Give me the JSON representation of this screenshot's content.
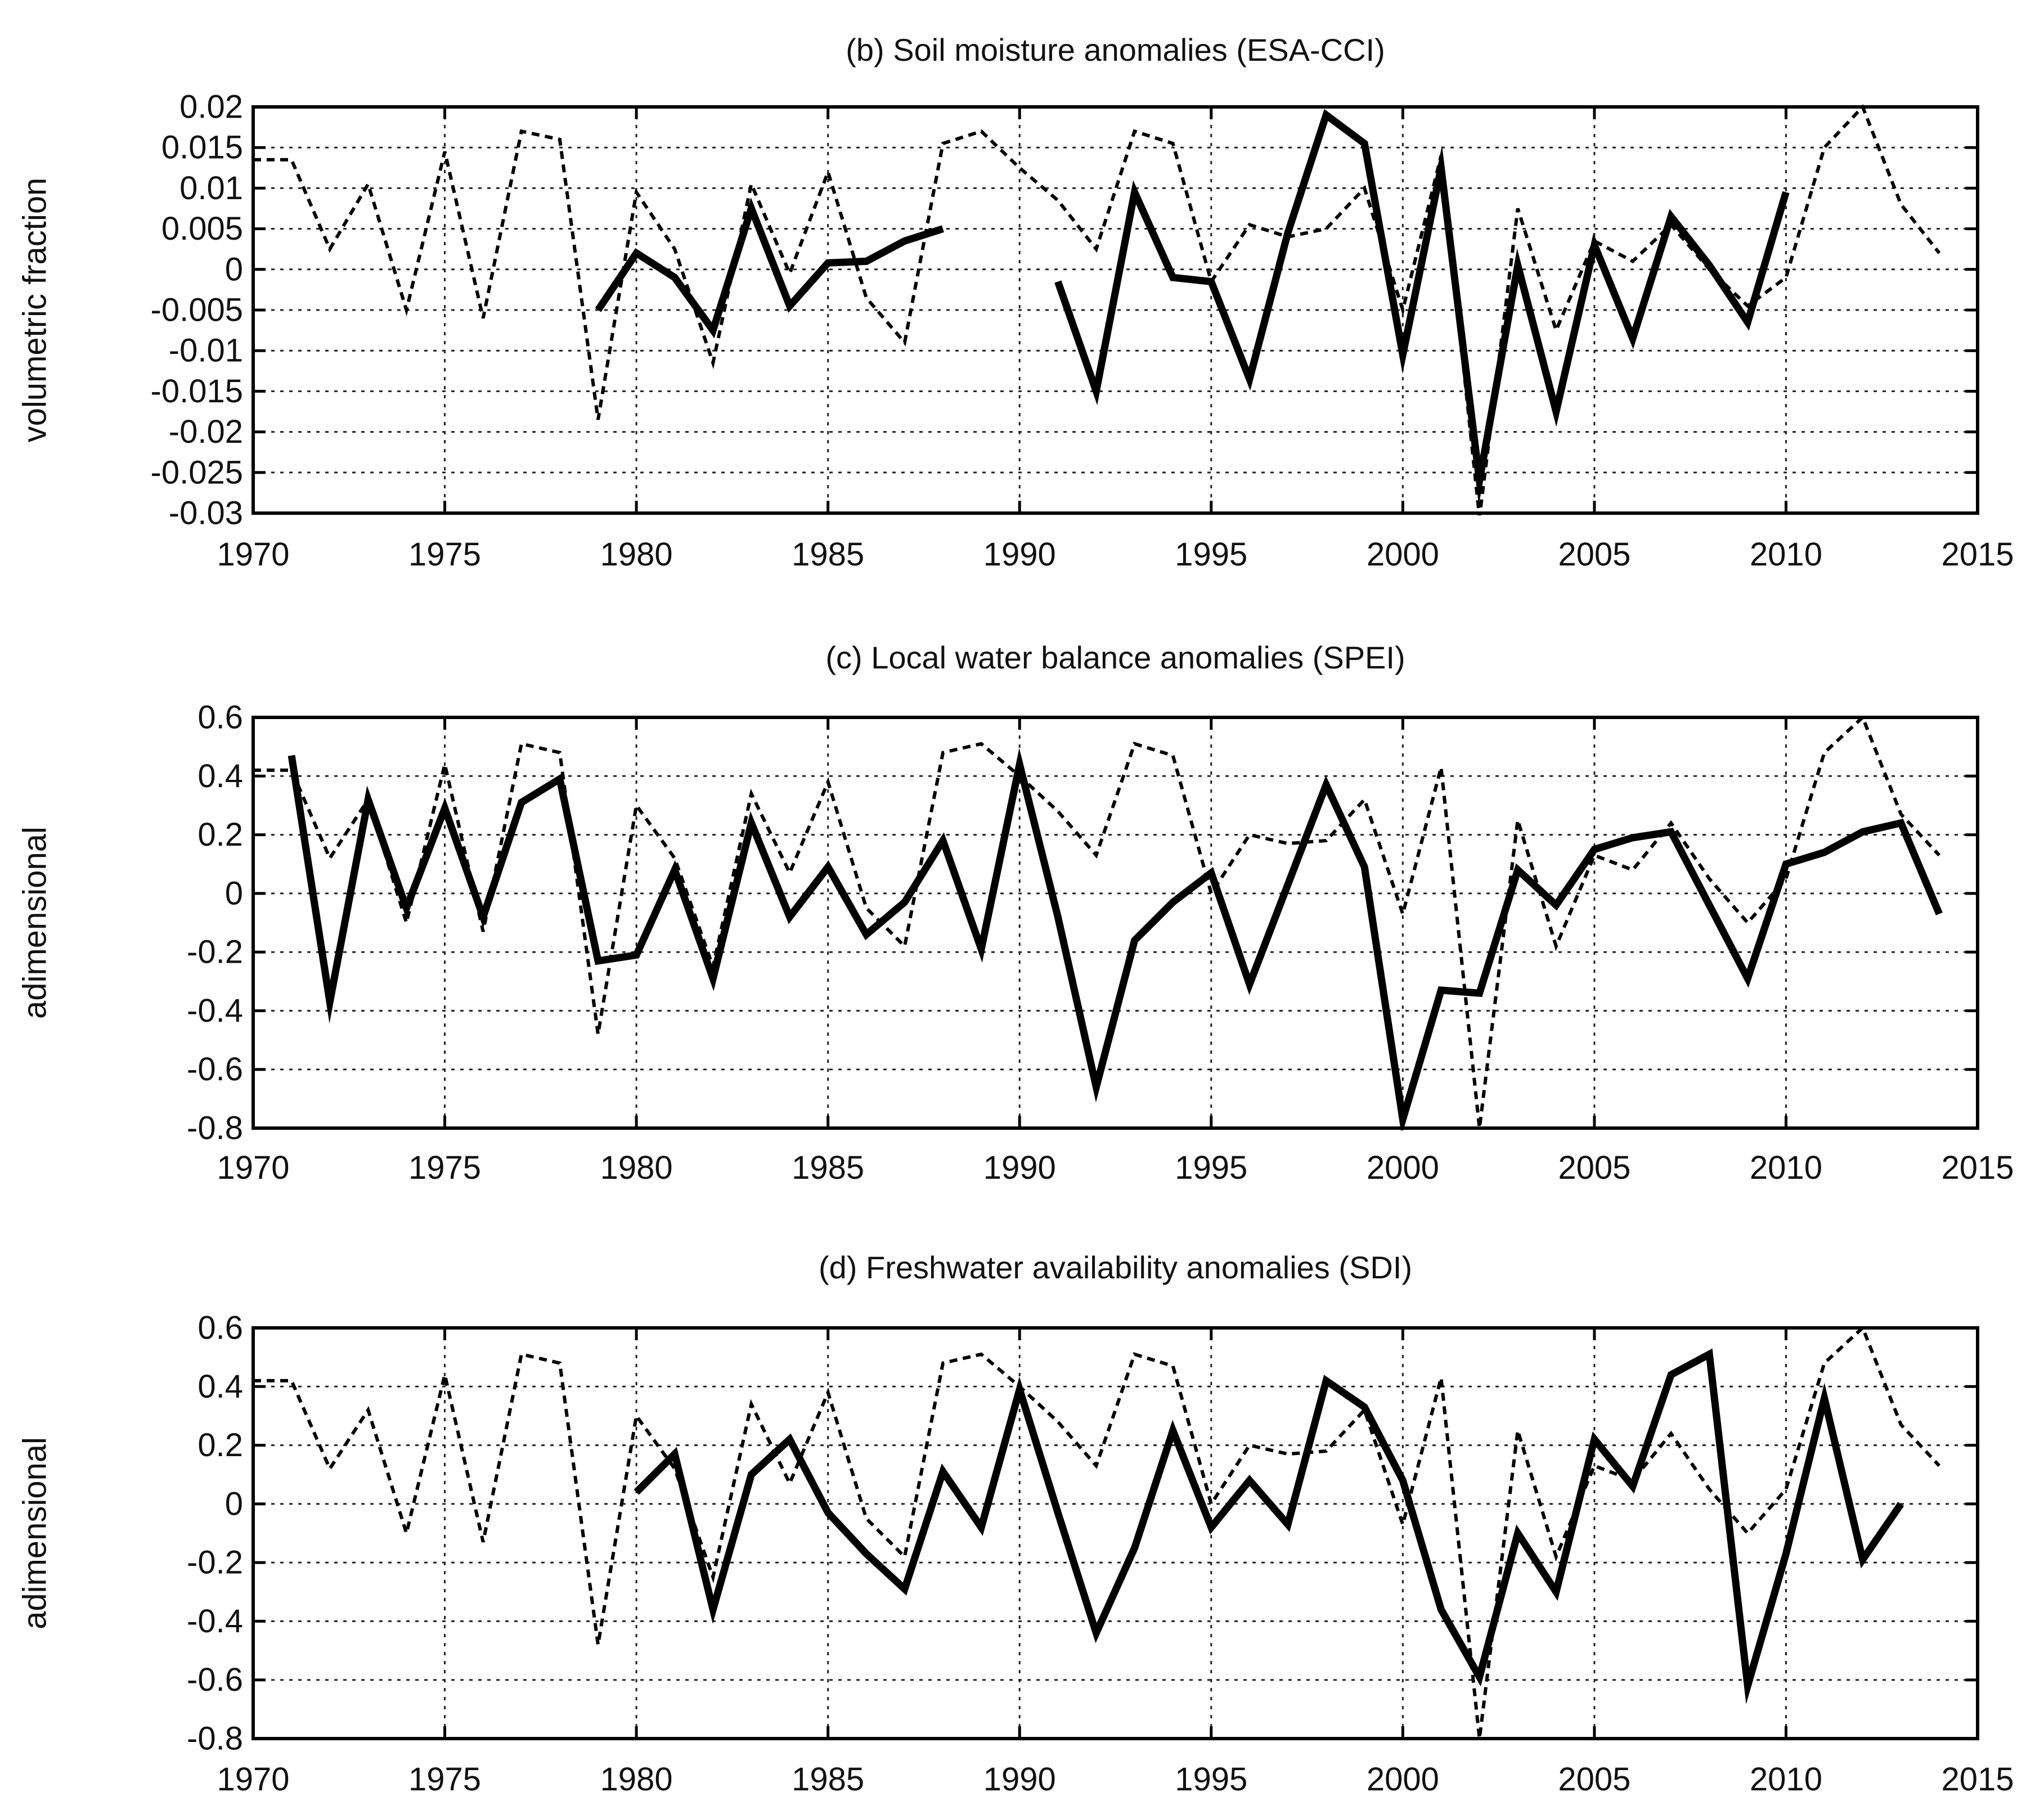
{
  "chart_data": [
    {
      "type": "line",
      "panel": "b",
      "title": "(b) Soil moisture anomalies (ESA-CCI)",
      "xlabel": "",
      "ylabel": "volumetric fraction",
      "xlim": [
        1970,
        2015
      ],
      "ylim": [
        -0.03,
        0.02
      ],
      "xticks": [
        1970,
        1975,
        1980,
        1985,
        1990,
        1995,
        2000,
        2005,
        2010,
        2015
      ],
      "xtick_labels": [
        "1970",
        "1975",
        "1980",
        "1985",
        "1990",
        "1995",
        "2000",
        "2005",
        "2010",
        "2015"
      ],
      "yticks": [
        -0.03,
        -0.025,
        -0.02,
        -0.015,
        -0.01,
        -0.005,
        0,
        0.005,
        0.01,
        0.015,
        0.02
      ],
      "ytick_labels": [
        "-0.03",
        "-0.025",
        "-0.02",
        "-0.015",
        "-0.01",
        "-0.005",
        "0",
        "0.005",
        "0.01",
        "0.015",
        "0.02"
      ],
      "grid": true,
      "series": [
        {
          "name": "dashed",
          "style": "dashed",
          "x": [
            1970,
            1971,
            1972,
            1973,
            1974,
            1975,
            1976,
            1977,
            1978,
            1979,
            1980,
            1981,
            1982,
            1983,
            1984,
            1985,
            1986,
            1987,
            1988,
            1989,
            1990,
            1991,
            1992,
            1993,
            1994,
            1995,
            1996,
            1997,
            1998,
            1999,
            2000,
            2001,
            2002,
            2003,
            2004,
            2005,
            2006,
            2007,
            2008,
            2009,
            2010,
            2011,
            2012,
            2013,
            2014
          ],
          "values": [
            0.0135,
            0.0135,
            0.0025,
            0.0105,
            -0.005,
            0.0145,
            -0.006,
            0.017,
            0.016,
            -0.0185,
            0.0095,
            0.0025,
            -0.0115,
            0.0105,
            -0.0005,
            0.012,
            -0.0035,
            -0.009,
            0.0155,
            0.017,
            0.0125,
            0.0085,
            0.0025,
            0.017,
            0.0155,
            -0.0015,
            0.0055,
            0.004,
            0.005,
            0.01,
            -0.005,
            0.014,
            -0.0305,
            0.0075,
            -0.0075,
            0.0035,
            0.001,
            0.0055,
            0.0,
            -0.0045,
            -0.001,
            0.015,
            0.02,
            0.008,
            0.002
          ]
        },
        {
          "name": "solid",
          "style": "solid",
          "segments": [
            {
              "x": [
                1979,
                1980,
                1981,
                1982,
                1983,
                1984,
                1985,
                1986,
                1987,
                1988
              ],
              "values": [
                -0.005,
                0.002,
                -0.001,
                -0.0075,
                0.0075,
                -0.0045,
                0.0008,
                0.001,
                0.0035,
                0.005
              ]
            },
            {
              "x": [
                1991,
                1992,
                1993,
                1994,
                1995,
                1996,
                1997,
                1998,
                1999,
                2000,
                2001,
                2002,
                2003,
                2004,
                2005,
                2006,
                2007,
                2008,
                2009,
                2010
              ],
              "values": [
                -0.0015,
                -0.015,
                0.0095,
                -0.001,
                -0.0015,
                -0.0135,
                0.0045,
                0.019,
                0.0155,
                -0.0105,
                0.0125,
                -0.026,
                0.0005,
                -0.0175,
                0.003,
                -0.0085,
                0.0065,
                0.0005,
                -0.0065,
                0.0095
              ]
            }
          ]
        }
      ]
    },
    {
      "type": "line",
      "panel": "c",
      "title": "(c) Local water balance anomalies (SPEI)",
      "xlabel": "",
      "ylabel": "adimensional",
      "xlim": [
        1970,
        2015
      ],
      "ylim": [
        -0.8,
        0.6
      ],
      "xticks": [
        1970,
        1975,
        1980,
        1985,
        1990,
        1995,
        2000,
        2005,
        2010,
        2015
      ],
      "xtick_labels": [
        "1970",
        "1975",
        "1980",
        "1985",
        "1990",
        "1995",
        "2000",
        "2005",
        "2010",
        "2015"
      ],
      "yticks": [
        -0.8,
        -0.6,
        -0.4,
        -0.2,
        0,
        0.2,
        0.4,
        0.6
      ],
      "ytick_labels": [
        "-0.8",
        "-0.6",
        "-0.4",
        "-0.2",
        "0",
        "0.2",
        "0.4",
        "0.6"
      ],
      "grid": true,
      "series": [
        {
          "name": "dashed",
          "style": "dashed",
          "x": [
            1970,
            1971,
            1972,
            1973,
            1974,
            1975,
            1976,
            1977,
            1978,
            1979,
            1980,
            1981,
            1982,
            1983,
            1984,
            1985,
            1986,
            1987,
            1988,
            1989,
            1990,
            1991,
            1992,
            1993,
            1994,
            1995,
            1996,
            1997,
            1998,
            1999,
            2000,
            2001,
            2002,
            2003,
            2004,
            2005,
            2006,
            2007,
            2008,
            2009,
            2010,
            2011,
            2012,
            2013,
            2014
          ],
          "values": [
            0.42,
            0.42,
            0.12,
            0.32,
            -0.1,
            0.44,
            -0.13,
            0.51,
            0.48,
            -0.48,
            0.3,
            0.12,
            -0.25,
            0.34,
            0.07,
            0.38,
            -0.05,
            -0.18,
            0.48,
            0.51,
            0.4,
            0.28,
            0.13,
            0.51,
            0.47,
            0.0,
            0.2,
            0.17,
            0.18,
            0.32,
            -0.07,
            0.43,
            -0.8,
            0.25,
            -0.18,
            0.13,
            0.08,
            0.24,
            0.05,
            -0.1,
            0.05,
            0.48,
            0.6,
            0.27,
            0.13
          ]
        },
        {
          "name": "solid",
          "style": "solid",
          "segments": [
            {
              "x": [
                1971,
                1972,
                1973,
                1974,
                1975,
                1976,
                1977,
                1978,
                1979,
                1980,
                1981,
                1982,
                1983,
                1984,
                1985,
                1986,
                1987,
                1988,
                1989,
                1990,
                1991,
                1992,
                1993,
                1994,
                1995,
                1996,
                1997,
                1998,
                1999,
                2000,
                2001,
                2002,
                2003,
                2004,
                2005,
                2006,
                2007,
                2008,
                2009,
                2010,
                2011,
                2012,
                2013,
                2014
              ],
              "values": [
                0.47,
                -0.37,
                0.32,
                -0.05,
                0.29,
                -0.08,
                0.31,
                0.39,
                -0.23,
                -0.21,
                0.08,
                -0.29,
                0.24,
                -0.08,
                0.09,
                -0.14,
                -0.03,
                0.18,
                -0.19,
                0.44,
                -0.08,
                -0.66,
                -0.16,
                -0.03,
                0.07,
                -0.31,
                0.03,
                0.37,
                0.09,
                -0.77,
                -0.33,
                -0.34,
                0.08,
                -0.04,
                0.15,
                0.19,
                0.21,
                -0.04,
                -0.29,
                0.1,
                0.14,
                0.21,
                0.24,
                -0.07
              ]
            }
          ]
        }
      ]
    },
    {
      "type": "line",
      "panel": "d",
      "title": "(d) Freshwater availability anomalies (SDI)",
      "xlabel": "",
      "ylabel": "adimensional",
      "xlim": [
        1970,
        2015
      ],
      "ylim": [
        -0.8,
        0.6
      ],
      "xticks": [
        1970,
        1975,
        1980,
        1985,
        1990,
        1995,
        2000,
        2005,
        2010,
        2015
      ],
      "xtick_labels": [
        "1970",
        "1975",
        "1980",
        "1985",
        "1990",
        "1995",
        "2000",
        "2005",
        "2010",
        "2015"
      ],
      "yticks": [
        -0.8,
        -0.6,
        -0.4,
        -0.2,
        0,
        0.2,
        0.4,
        0.6
      ],
      "ytick_labels": [
        "-0.8",
        "-0.6",
        "-0.4",
        "-0.2",
        "0",
        "0.2",
        "0.4",
        "0.6"
      ],
      "grid": true,
      "series": [
        {
          "name": "dashed",
          "style": "dashed",
          "x": [
            1970,
            1971,
            1972,
            1973,
            1974,
            1975,
            1976,
            1977,
            1978,
            1979,
            1980,
            1981,
            1982,
            1983,
            1984,
            1985,
            1986,
            1987,
            1988,
            1989,
            1990,
            1991,
            1992,
            1993,
            1994,
            1995,
            1996,
            1997,
            1998,
            1999,
            2000,
            2001,
            2002,
            2003,
            2004,
            2005,
            2006,
            2007,
            2008,
            2009,
            2010,
            2011,
            2012,
            2013,
            2014
          ],
          "values": [
            0.42,
            0.42,
            0.12,
            0.32,
            -0.1,
            0.44,
            -0.13,
            0.51,
            0.48,
            -0.48,
            0.3,
            0.12,
            -0.25,
            0.34,
            0.07,
            0.38,
            -0.05,
            -0.18,
            0.48,
            0.51,
            0.4,
            0.28,
            0.13,
            0.51,
            0.47,
            0.0,
            0.2,
            0.17,
            0.18,
            0.32,
            -0.07,
            0.43,
            -0.8,
            0.25,
            -0.18,
            0.13,
            0.08,
            0.24,
            0.05,
            -0.1,
            0.05,
            0.48,
            0.6,
            0.27,
            0.13
          ]
        },
        {
          "name": "solid",
          "style": "solid",
          "segments": [
            {
              "x": [
                1980,
                1981,
                1982,
                1983,
                1984,
                1985,
                1986,
                1987,
                1988,
                1989,
                1990,
                1991,
                1992,
                1993,
                1994,
                1995,
                1996,
                1997,
                1998,
                1999,
                2000,
                2001,
                2002,
                2003,
                2004,
                2005,
                2006,
                2007,
                2008,
                2009,
                2010,
                2011,
                2012,
                2013
              ],
              "values": [
                0.04,
                0.17,
                -0.36,
                0.1,
                0.22,
                -0.03,
                -0.17,
                -0.29,
                0.11,
                -0.08,
                0.39,
                -0.03,
                -0.44,
                -0.15,
                0.25,
                -0.08,
                0.08,
                -0.07,
                0.42,
                0.33,
                0.08,
                -0.36,
                -0.59,
                -0.1,
                -0.3,
                0.22,
                0.06,
                0.44,
                0.51,
                -0.62,
                -0.17,
                0.36,
                -0.19,
                0.0
              ]
            }
          ]
        }
      ]
    }
  ]
}
